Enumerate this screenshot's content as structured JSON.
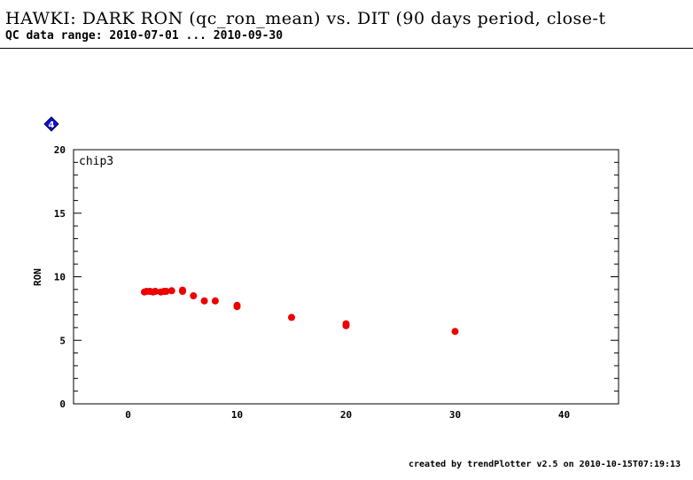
{
  "page": {
    "title": "HAWKI: DARK RON (qc_ron_mean) vs. DIT (90 days period, close-t",
    "subtitle": "QC data range: 2010-07-01 ... 2010-09-30",
    "footer": "created by trendPlotter v2.5 on 2010-10-15T07:19:13"
  },
  "marker": {
    "label": "4",
    "color": "#1010e0",
    "icon": "blue-diamond-icon"
  },
  "chart_data": {
    "type": "scatter",
    "panel_label": "chip3",
    "ylabel": "RON",
    "xlabel": "",
    "xlim": [
      -5,
      45
    ],
    "ylim": [
      0,
      20
    ],
    "xticks": [
      0,
      10,
      20,
      30,
      40
    ],
    "yticks": [
      0,
      5,
      10,
      15,
      20
    ],
    "point_color": "#ee0000",
    "series": [
      {
        "x": [
          1.5,
          1.7,
          2.0,
          2.3,
          2.5,
          3.0,
          3.3,
          3.5,
          4.0,
          5.0,
          5.0,
          6.0,
          7.0,
          8.0,
          10.0,
          10.0,
          15.0,
          20.0,
          20.0,
          30.0
        ],
        "y": [
          8.8,
          8.85,
          8.85,
          8.8,
          8.85,
          8.8,
          8.85,
          8.85,
          8.9,
          8.85,
          8.95,
          8.5,
          8.1,
          8.1,
          7.65,
          7.75,
          6.8,
          6.15,
          6.3,
          5.7
        ]
      }
    ]
  }
}
